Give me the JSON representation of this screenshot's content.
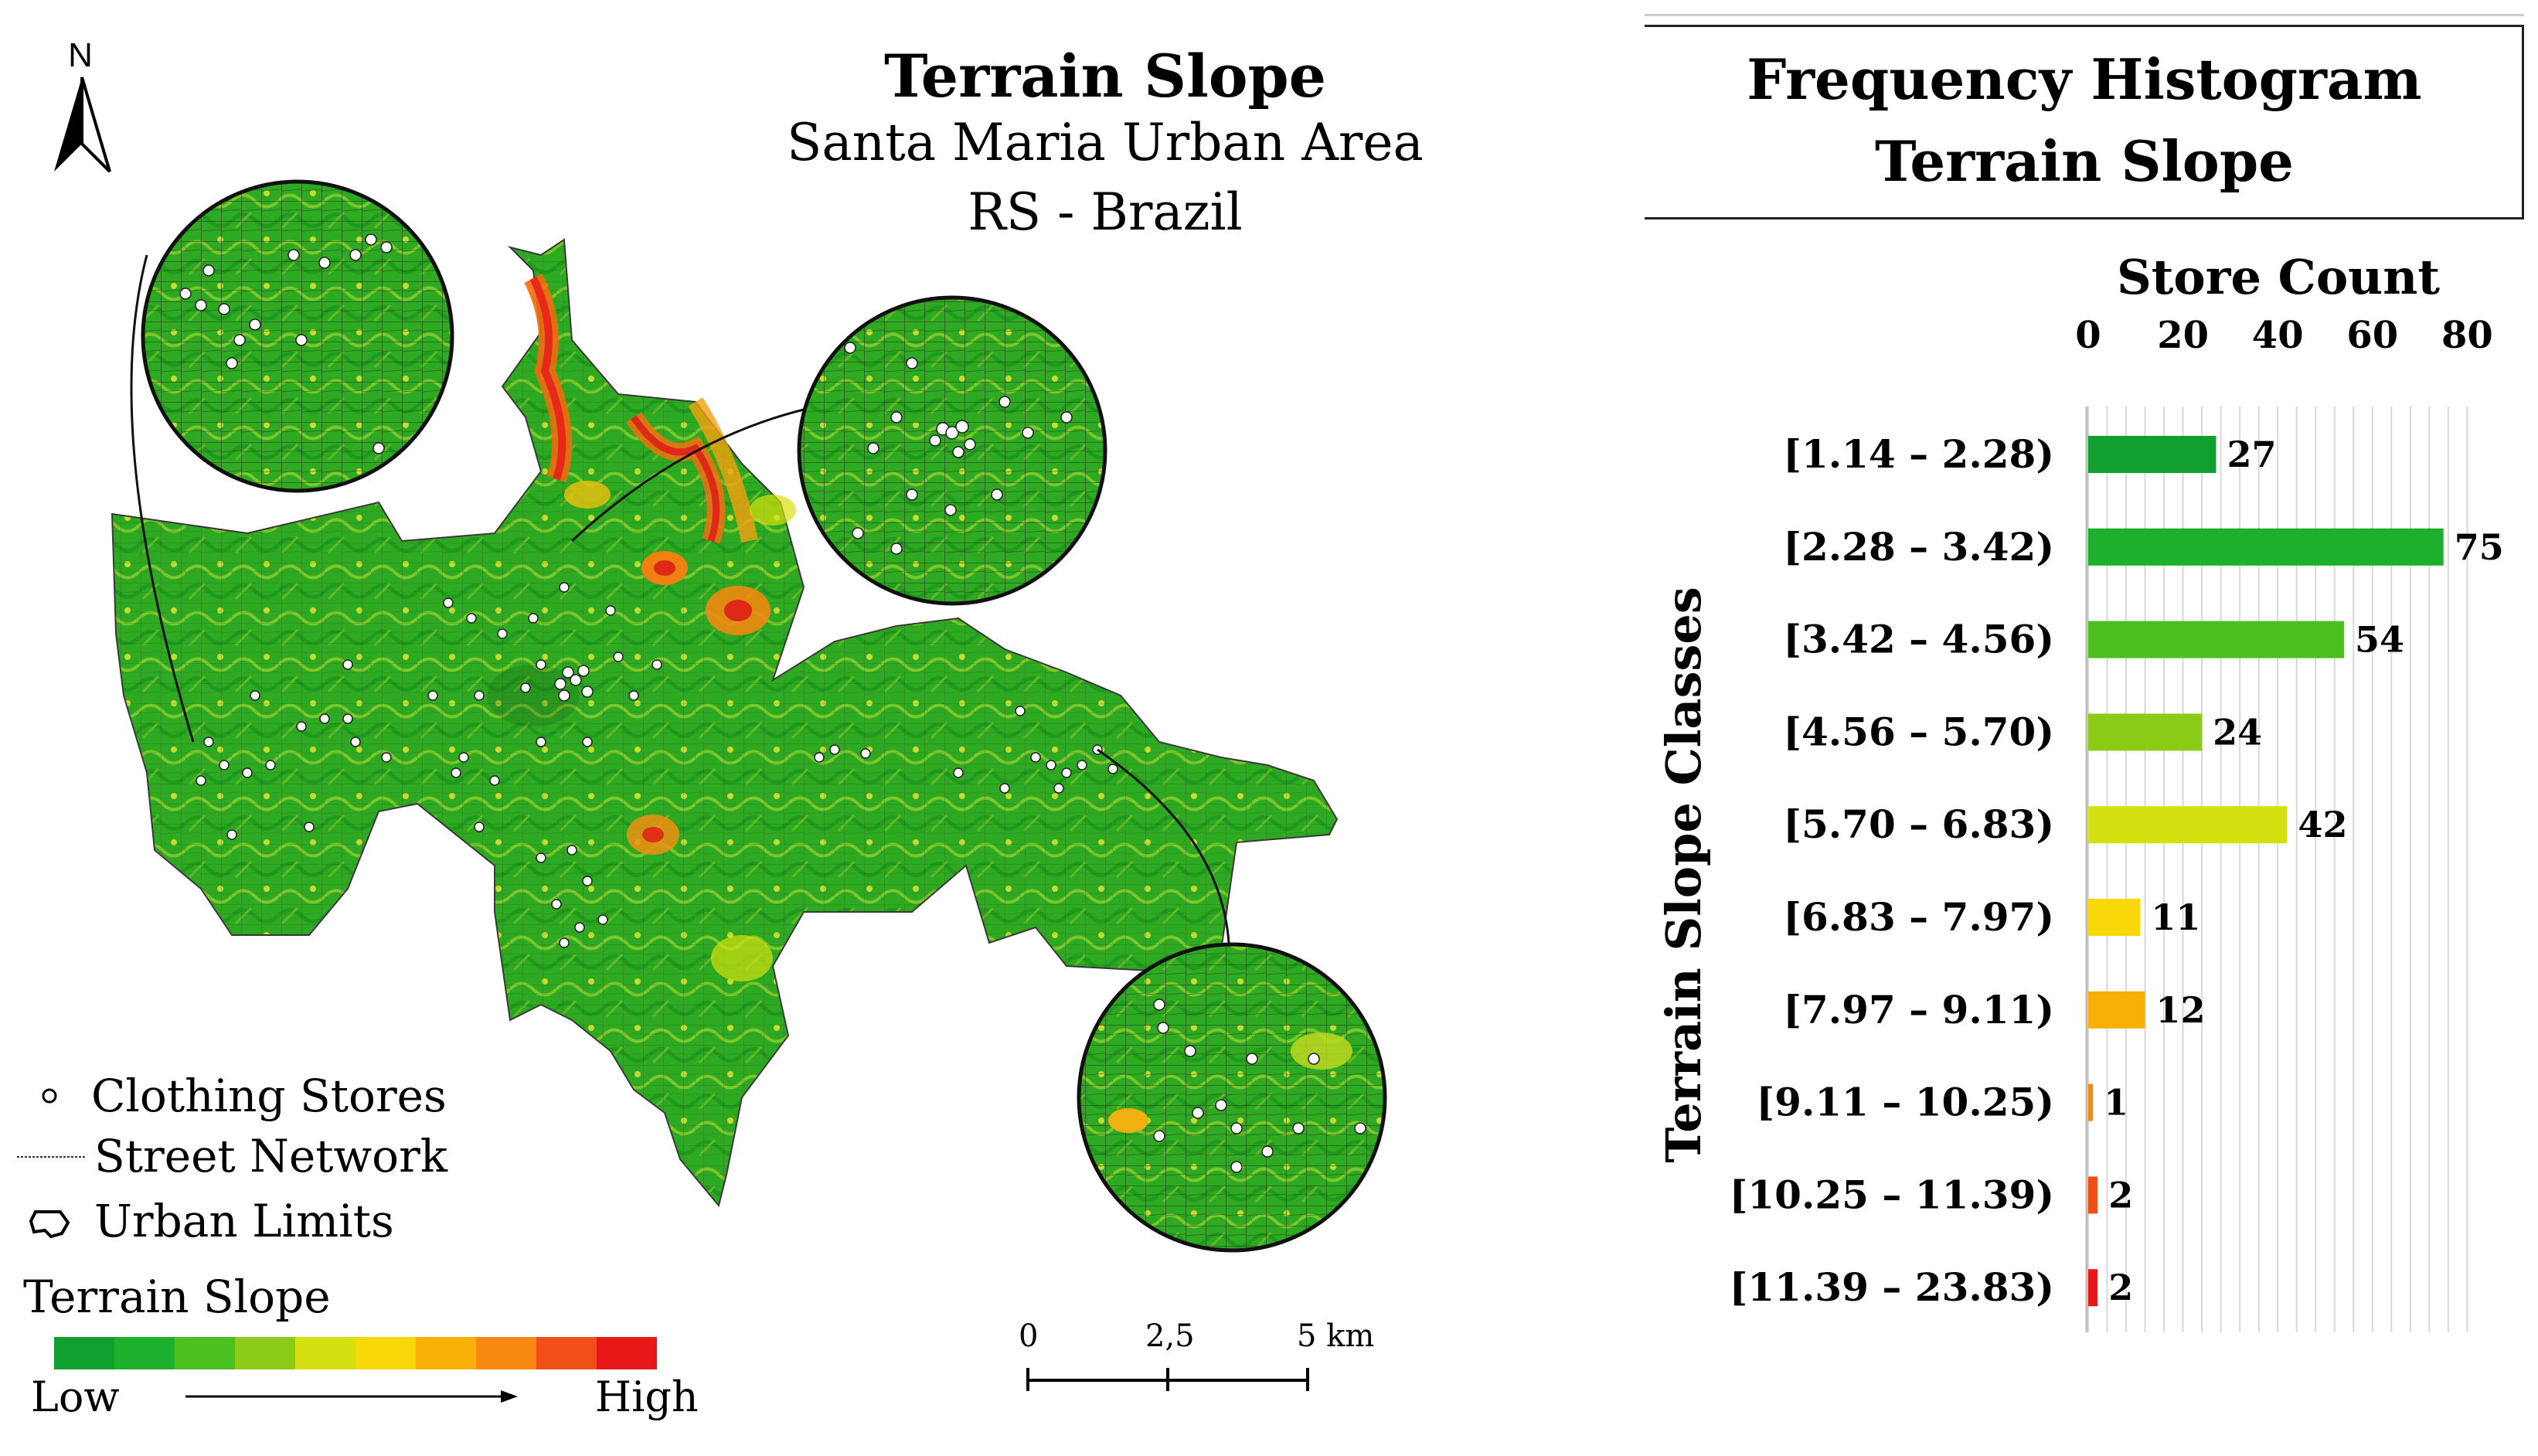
{
  "map": {
    "north": "N",
    "title": "Terrain Slope",
    "subtitle": "Santa Maria Urban Area",
    "region": "RS - Brazil",
    "legend": {
      "stores": "Clothing Stores",
      "streets": "Street Network",
      "limits": "Urban Limits",
      "slope_title": "Terrain Slope",
      "low": "Low",
      "high": "High",
      "ramp_colors": [
        "#10a030",
        "#1cb02c",
        "#4cc020",
        "#8ccc18",
        "#d4e010",
        "#f8d808",
        "#f8b008",
        "#f88810",
        "#f05018",
        "#e81818"
      ]
    },
    "scale": {
      "labels": [
        "0",
        "2,5",
        "5 km"
      ]
    }
  },
  "chart_data": {
    "type": "bar",
    "orientation": "horizontal",
    "title": "Frequency Histogram",
    "subtitle": "Terrain Slope",
    "xlabel": "Store Count",
    "ylabel": "Terrain Slope Classes",
    "xlim": [
      0,
      80
    ],
    "xticks": [
      "0",
      "20",
      "40",
      "60",
      "80"
    ],
    "categories": [
      "[1.14 – 2.28)",
      "[2.28 – 3.42)",
      "[3.42 – 4.56)",
      "[4.56 – 5.70)",
      "[5.70 – 6.83)",
      "[6.83 – 7.97)",
      "[7.97 – 9.11)",
      "[9.11 – 10.25)",
      "[10.25 – 11.39)",
      "[11.39 – 23.83)"
    ],
    "values": [
      27,
      75,
      54,
      24,
      42,
      11,
      12,
      1,
      2,
      2
    ],
    "colors": [
      "#10a030",
      "#1cb02c",
      "#4cc020",
      "#8ccc18",
      "#d4e010",
      "#f8d808",
      "#f8b008",
      "#f88810",
      "#f05018",
      "#e81818"
    ],
    "grid": true
  }
}
